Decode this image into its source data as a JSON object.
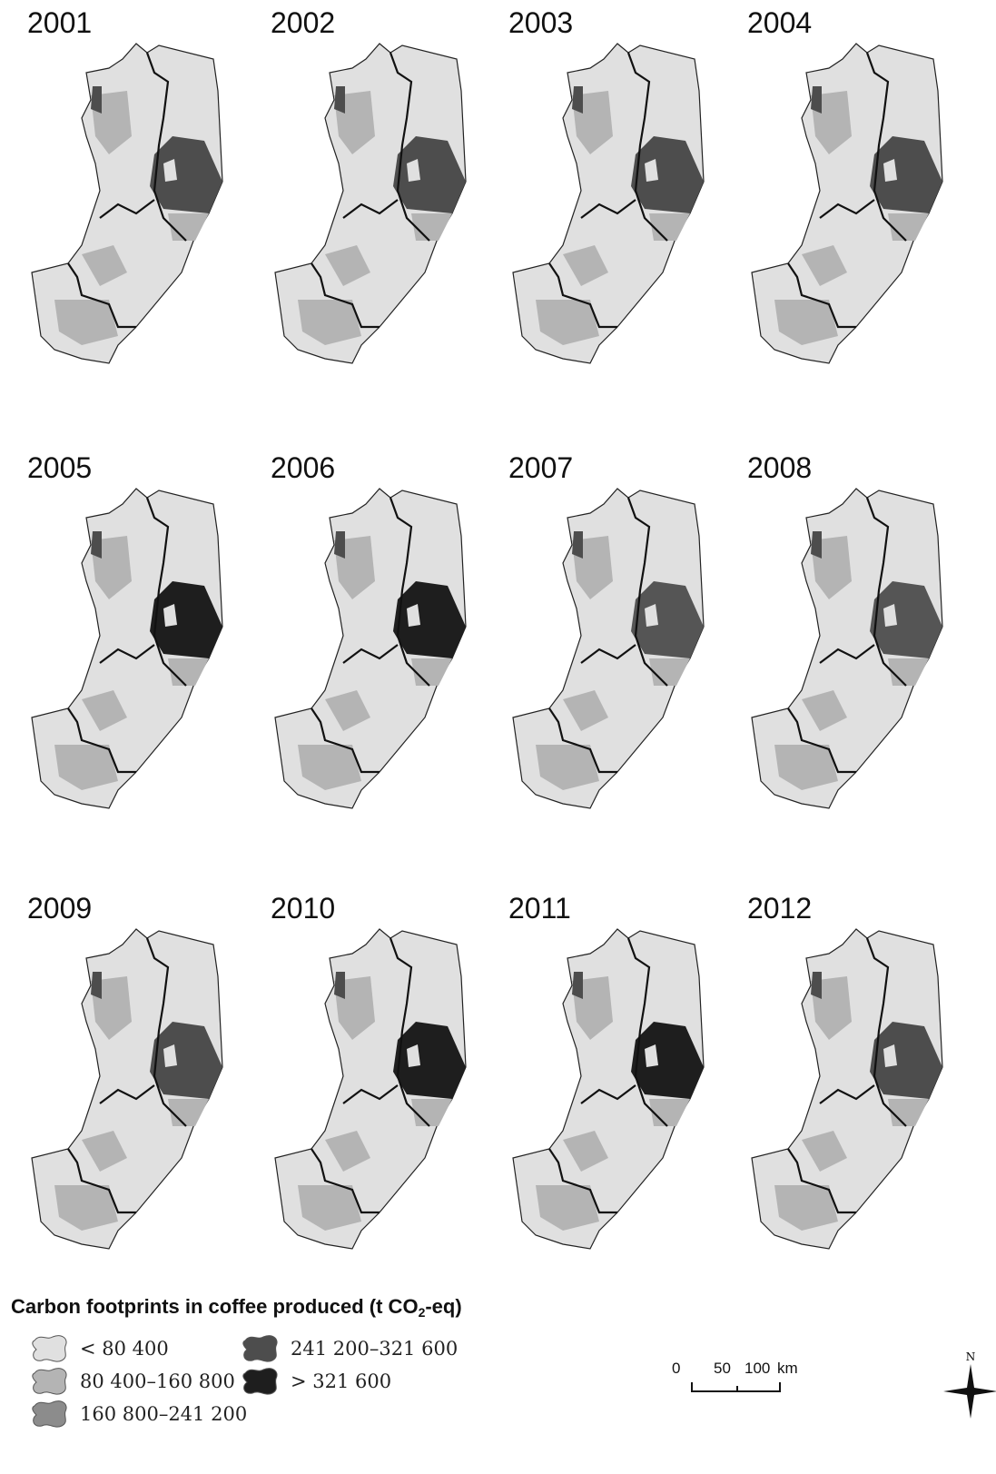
{
  "panels": [
    {
      "year": "2001",
      "core_color": "#4d4d4d"
    },
    {
      "year": "2002",
      "core_color": "#4d4d4d"
    },
    {
      "year": "2003",
      "core_color": "#4d4d4d"
    },
    {
      "year": "2004",
      "core_color": "#4d4d4d"
    },
    {
      "year": "2005",
      "core_color": "#1e1e1e"
    },
    {
      "year": "2006",
      "core_color": "#1e1e1e"
    },
    {
      "year": "2007",
      "core_color": "#555555"
    },
    {
      "year": "2008",
      "core_color": "#555555"
    },
    {
      "year": "2009",
      "core_color": "#4d4d4d"
    },
    {
      "year": "2010",
      "core_color": "#1e1e1e"
    },
    {
      "year": "2011",
      "core_color": "#1e1e1e"
    },
    {
      "year": "2012",
      "core_color": "#4d4d4d"
    }
  ],
  "legend": {
    "title": "Carbon footprints in coffee produced",
    "unit_prefix": "(t CO",
    "unit_sub": "2",
    "unit_suffix": "-eq)",
    "items": [
      {
        "label": "< 80 400",
        "color": "#e0e0e0"
      },
      {
        "label": "80 400–160 800",
        "color": "#b4b4b4"
      },
      {
        "label": "160 800–241 200",
        "color": "#8c8c8c"
      },
      {
        "label": "241 200–321 600",
        "color": "#4d4d4d"
      },
      {
        "label": "> 321 600",
        "color": "#1e1e1e"
      }
    ]
  },
  "scale_bar": {
    "labels": [
      "0",
      "50",
      "100"
    ],
    "unit": "km"
  },
  "north": "N"
}
